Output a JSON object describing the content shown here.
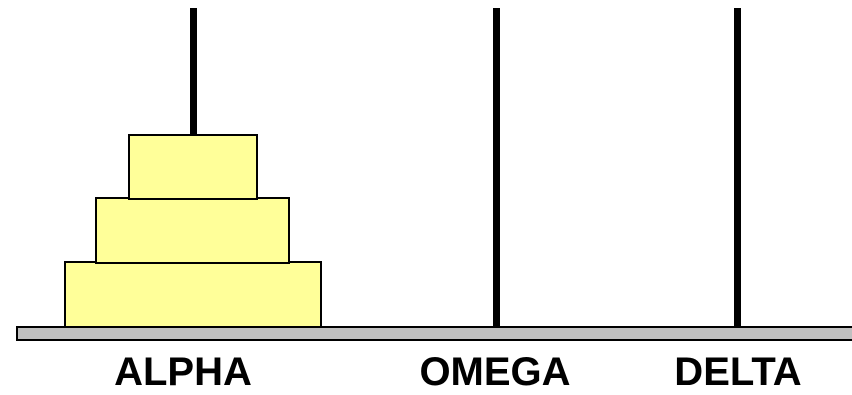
{
  "pegs": [
    {
      "label": "ALPHA"
    },
    {
      "label": "OMEGA"
    },
    {
      "label": "DELTA"
    }
  ],
  "disks_on_alpha": 3,
  "colors": {
    "disk_fill": "#ffff99",
    "base_fill": "#c0c0c0",
    "peg": "#000000",
    "outline": "#000000"
  }
}
